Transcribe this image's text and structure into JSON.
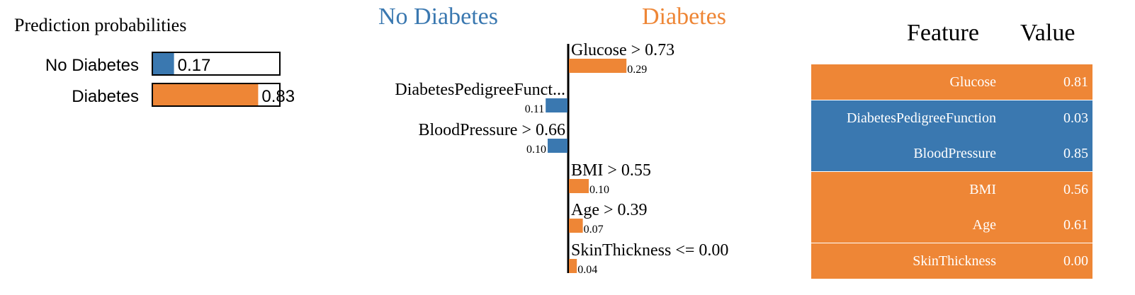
{
  "colors": {
    "no_diabetes": "#3a78b0",
    "diabetes": "#ee8636",
    "bar_border": "#000000"
  },
  "chart_data": [
    {
      "type": "bar",
      "title": "Prediction probabilities",
      "categories": [
        "No Diabetes",
        "Diabetes"
      ],
      "values": [
        0.17,
        0.83
      ],
      "value_labels": [
        "0.17",
        "0.83"
      ],
      "xlim": [
        0,
        1
      ]
    },
    {
      "type": "bar",
      "orientation": "horizontal",
      "class_labels": {
        "negative": "No Diabetes",
        "positive": "Diabetes"
      },
      "categories": [
        "Glucose > 0.73",
        "DiabetesPedigreeFunct...",
        "BloodPressure > 0.66",
        "BMI > 0.55",
        "Age > 0.39",
        "SkinThickness <= 0.00"
      ],
      "values": [
        0.29,
        -0.11,
        -0.1,
        0.1,
        0.07,
        0.04
      ],
      "value_labels": [
        "0.29",
        "0.11",
        "0.10",
        "0.10",
        "0.07",
        "0.04"
      ]
    },
    {
      "type": "table",
      "columns": [
        "Feature",
        "Value"
      ],
      "rows": [
        {
          "feature": "Glucose",
          "value": "0.81",
          "class": "diabetes"
        },
        {
          "feature": "DiabetesPedigreeFunction",
          "value": "0.03",
          "class": "no_diabetes"
        },
        {
          "feature": "BloodPressure",
          "value": "0.85",
          "class": "no_diabetes"
        },
        {
          "feature": "BMI",
          "value": "0.56",
          "class": "diabetes"
        },
        {
          "feature": "Age",
          "value": "0.61",
          "class": "diabetes"
        },
        {
          "feature": "SkinThickness",
          "value": "0.00",
          "class": "diabetes"
        }
      ]
    }
  ]
}
